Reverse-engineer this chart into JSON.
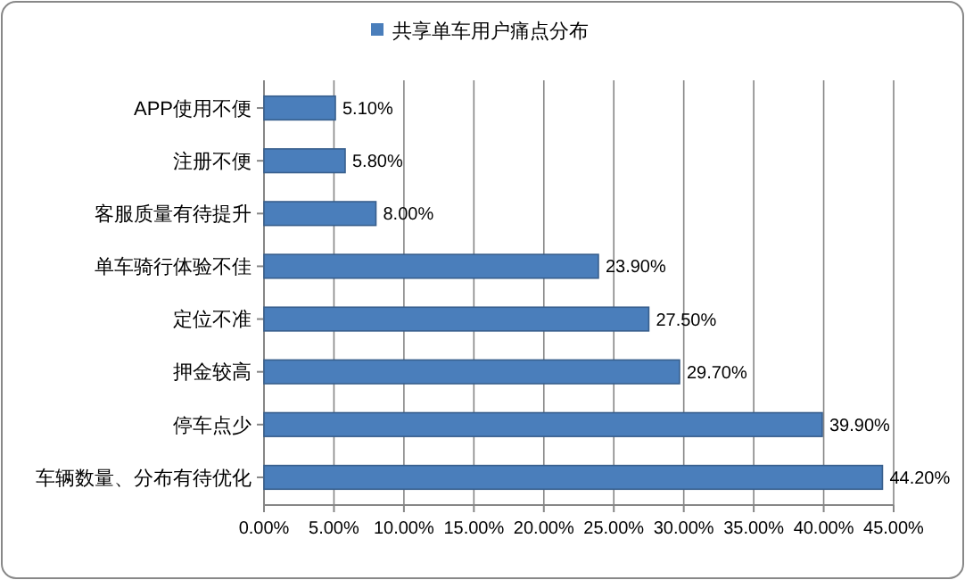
{
  "chart_data": {
    "type": "bar",
    "orientation": "horizontal",
    "categories": [
      "APP使用不便",
      "注册不便",
      "客服质量有待提升",
      "单车骑行体验不佳",
      "定位不准",
      "押金较高",
      "停车点少",
      "车辆数量、分布有待优化"
    ],
    "series": [
      {
        "name": "共享单车用户痛点分布",
        "color": "#4a7ebb",
        "values": [
          5.1,
          5.8,
          8.0,
          23.9,
          27.5,
          29.7,
          39.9,
          44.2
        ],
        "value_labels": [
          "5.10%",
          "5.80%",
          "8.00%",
          "23.90%",
          "27.50%",
          "29.70%",
          "39.90%",
          "44.20%"
        ]
      }
    ],
    "xlim": [
      0,
      45
    ],
    "xticks": [
      {
        "value": 0,
        "label": "0.00%"
      },
      {
        "value": 5,
        "label": "5.00%"
      },
      {
        "value": 10,
        "label": "10.00%"
      },
      {
        "value": 15,
        "label": "15.00%"
      },
      {
        "value": 20,
        "label": "20.00%"
      },
      {
        "value": 25,
        "label": "25.00%"
      },
      {
        "value": 30,
        "label": "30.00%"
      },
      {
        "value": 35,
        "label": "35.00%"
      },
      {
        "value": 40,
        "label": "40.00%"
      },
      {
        "value": 45,
        "label": "45.00%"
      }
    ],
    "grid": "x",
    "legend": "top"
  }
}
